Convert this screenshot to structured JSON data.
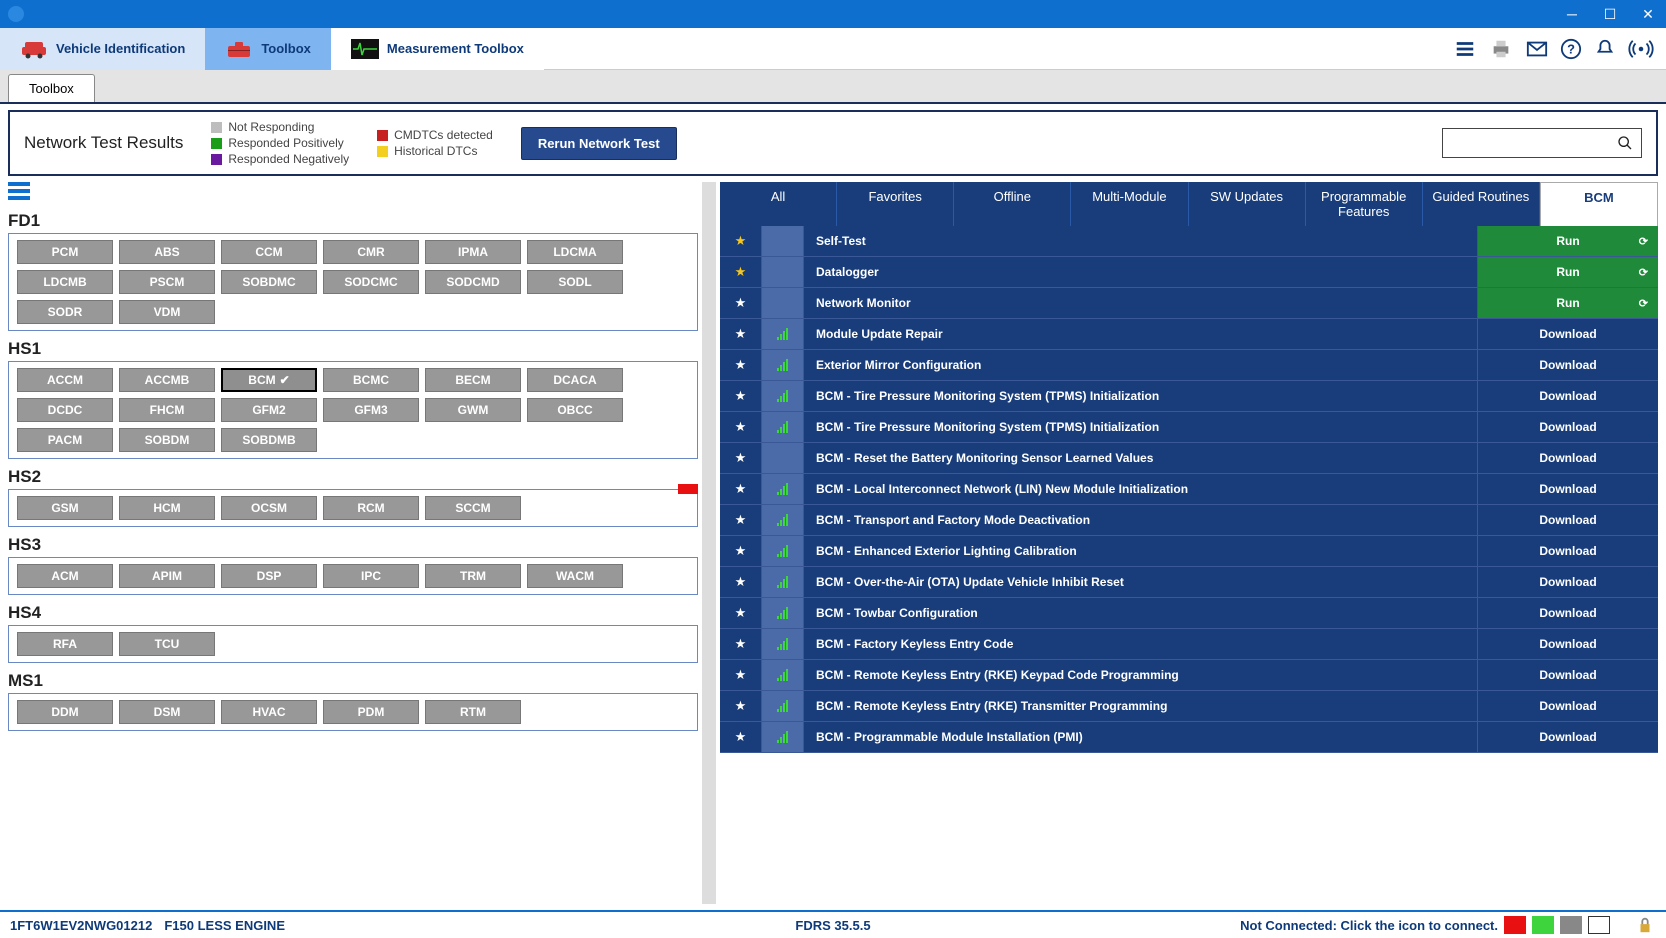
{
  "colors": {
    "primary_blue": "#0e6fce",
    "dark_navy": "#183d7a",
    "mid_blue": "#4a6aa8",
    "green_run": "#1f8a3a",
    "module_gray": "#989898",
    "legend_gray": "#bdbdbd",
    "legend_green": "#1a9e1a",
    "legend_purple": "#6a1a9e",
    "legend_red": "#c62020",
    "legend_yellow": "#f3d020"
  },
  "nav": {
    "vehicle": "Vehicle Identification",
    "toolbox": "Toolbox",
    "measure": "Measurement Toolbox"
  },
  "tab": "Toolbox",
  "network_test": {
    "title": "Network Test Results",
    "legend1": [
      {
        "color": "#bdbdbd",
        "label": "Not Responding"
      },
      {
        "color": "#1a9e1a",
        "label": "Responded Positively"
      },
      {
        "color": "#6a1a9e",
        "label": "Responded Negatively"
      }
    ],
    "legend2": [
      {
        "color": "#c62020",
        "label": "CMDTCs detected"
      },
      {
        "color": "#f3d020",
        "label": "Historical DTCs"
      }
    ],
    "rerun_btn": "Rerun Network Test"
  },
  "buses": [
    {
      "name": "FD1",
      "modules": [
        "PCM",
        "ABS",
        "CCM",
        "CMR",
        "IPMA",
        "LDCMA",
        "LDCMB",
        "PSCM",
        "SOBDMC",
        "SODCMC",
        "SODCMD",
        "SODL",
        "SODR",
        "VDM"
      ]
    },
    {
      "name": "HS1",
      "modules": [
        "ACCM",
        "ACCMB",
        "BCM",
        "BCMC",
        "BECM",
        "DCACA",
        "DCDC",
        "FHCM",
        "GFM2",
        "GFM3",
        "GWM",
        "OBCC",
        "PACM",
        "SOBDM",
        "SOBDMB"
      ]
    },
    {
      "name": "HS2",
      "modules": [
        "GSM",
        "HCM",
        "OCSM",
        "RCM",
        "SCCM"
      ]
    },
    {
      "name": "HS3",
      "modules": [
        "ACM",
        "APIM",
        "DSP",
        "IPC",
        "TRM",
        "WACM"
      ]
    },
    {
      "name": "HS4",
      "modules": [
        "RFA",
        "TCU"
      ]
    },
    {
      "name": "MS1",
      "modules": [
        "DDM",
        "DSM",
        "HVAC",
        "PDM",
        "RTM"
      ]
    }
  ],
  "selected_module": "BCM",
  "func_tabs": [
    "All",
    "Favorites",
    "Offline",
    "Multi-Module",
    "SW Updates",
    "Programmable Features",
    "Guided Routines",
    "BCM"
  ],
  "active_func_tab": "BCM",
  "functions": [
    {
      "star": "gold",
      "signal": false,
      "name": "Self-Test",
      "action": "Run",
      "refresh": true
    },
    {
      "star": "gold",
      "signal": false,
      "name": "Datalogger",
      "action": "Run",
      "refresh": true
    },
    {
      "star": "white",
      "signal": false,
      "name": "Network Monitor",
      "action": "Run",
      "refresh": true
    },
    {
      "star": "white",
      "signal": true,
      "name": "Module Update Repair",
      "action": "Download"
    },
    {
      "star": "white",
      "signal": true,
      "name": "Exterior Mirror Configuration",
      "action": "Download"
    },
    {
      "star": "white",
      "signal": true,
      "name": "BCM - Tire Pressure Monitoring System (TPMS) Initialization",
      "action": "Download"
    },
    {
      "star": "white",
      "signal": true,
      "name": "BCM - Tire Pressure Monitoring System (TPMS) Initialization",
      "action": "Download"
    },
    {
      "star": "white",
      "signal": false,
      "name": "BCM - Reset the Battery Monitoring Sensor Learned Values",
      "action": "Download"
    },
    {
      "star": "white",
      "signal": true,
      "name": "BCM - Local Interconnect Network (LIN) New Module Initialization",
      "action": "Download"
    },
    {
      "star": "white",
      "signal": true,
      "name": "BCM - Transport and Factory Mode Deactivation",
      "action": "Download"
    },
    {
      "star": "white",
      "signal": true,
      "name": "BCM - Enhanced Exterior Lighting Calibration",
      "action": "Download"
    },
    {
      "star": "white",
      "signal": true,
      "name": "BCM - Over-the-Air (OTA) Update Vehicle Inhibit Reset",
      "action": "Download"
    },
    {
      "star": "white",
      "signal": true,
      "name": "BCM - Towbar Configuration",
      "action": "Download"
    },
    {
      "star": "white",
      "signal": true,
      "name": "BCM - Factory Keyless Entry Code",
      "action": "Download"
    },
    {
      "star": "white",
      "signal": true,
      "name": "BCM - Remote Keyless Entry (RKE) Keypad Code Programming",
      "action": "Download"
    },
    {
      "star": "white",
      "signal": true,
      "name": "BCM - Remote Keyless Entry (RKE) Transmitter Programming",
      "action": "Download"
    },
    {
      "star": "white",
      "signal": true,
      "name": "BCM - Programmable Module Installation (PMI)",
      "action": "Download"
    }
  ],
  "status": {
    "vin": "1FT6W1EV2NWG01212",
    "vehicle": "F150 LESS ENGINE",
    "version": "FDRS 35.5.5",
    "connection": "Not Connected: Click the icon to connect."
  }
}
